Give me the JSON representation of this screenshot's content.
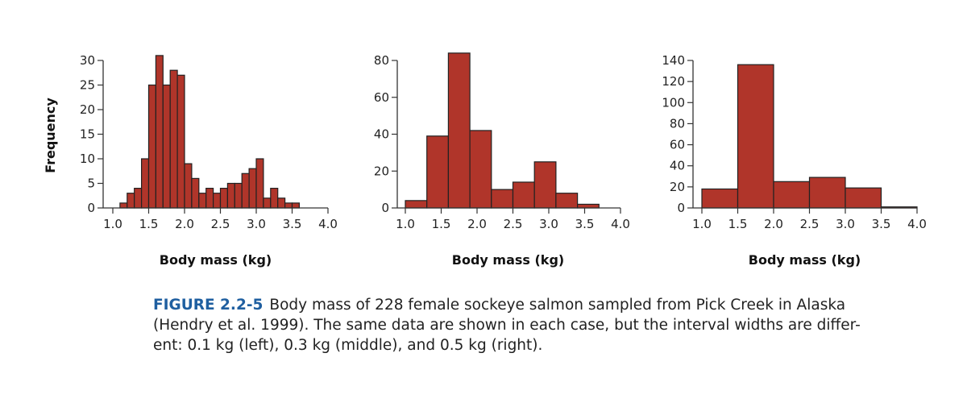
{
  "chart_data": [
    {
      "type": "bar",
      "title": "",
      "xlabel": "Body mass (kg)",
      "ylabel": "Frequency",
      "bin_width": 0.1,
      "bin_start": 1.1,
      "values": [
        1,
        3,
        4,
        10,
        25,
        31,
        25,
        28,
        27,
        9,
        6,
        3,
        4,
        3,
        4,
        5,
        5,
        7,
        8,
        10,
        2,
        4,
        2,
        1,
        1
      ],
      "xlim": [
        1.0,
        4.0
      ],
      "ylim": [
        0,
        30
      ],
      "xticks": [
        "1.0",
        "1.5",
        "2.0",
        "2.5",
        "3.0",
        "3.5",
        "4.0"
      ],
      "yticks": [
        "0",
        "5",
        "10",
        "15",
        "20",
        "25",
        "30"
      ],
      "grid": false
    },
    {
      "type": "bar",
      "title": "",
      "xlabel": "Body mass (kg)",
      "ylabel": "",
      "bin_width": 0.3,
      "bin_start": 1.0,
      "values": [
        4,
        39,
        84,
        42,
        10,
        14,
        25,
        8,
        2
      ],
      "xlim": [
        1.0,
        4.0
      ],
      "ylim": [
        0,
        80
      ],
      "xticks": [
        "1.0",
        "1.5",
        "2.0",
        "2.5",
        "3.0",
        "3.5",
        "4.0"
      ],
      "yticks": [
        "0",
        "20",
        "40",
        "60",
        "80"
      ],
      "grid": false
    },
    {
      "type": "bar",
      "title": "",
      "xlabel": "Body mass (kg)",
      "ylabel": "",
      "bin_width": 0.5,
      "bin_start": 1.0,
      "values": [
        18,
        136,
        25,
        29,
        19,
        1
      ],
      "xlim": [
        1.0,
        4.0
      ],
      "ylim": [
        0,
        140
      ],
      "xticks": [
        "1.0",
        "1.5",
        "2.0",
        "2.5",
        "3.0",
        "3.5",
        "4.0"
      ],
      "yticks": [
        "0",
        "20",
        "40",
        "60",
        "80",
        "100",
        "120",
        "140"
      ],
      "grid": false
    }
  ],
  "colors": {
    "bar": "#b0352a",
    "outline": "#222222",
    "figure_label": "#1f5fa0"
  },
  "caption": {
    "label": "FIGURE 2.2-5",
    "line1": "Body mass of 228 female sockeye salmon sampled from Pick Creek in Alaska",
    "line2": "(Hendry et al. 1999). The same data are shown in each case, but the interval widths are differ-",
    "line3": "ent: 0.1 kg (left), 0.3 kg (middle), and 0.5 kg (right)."
  }
}
